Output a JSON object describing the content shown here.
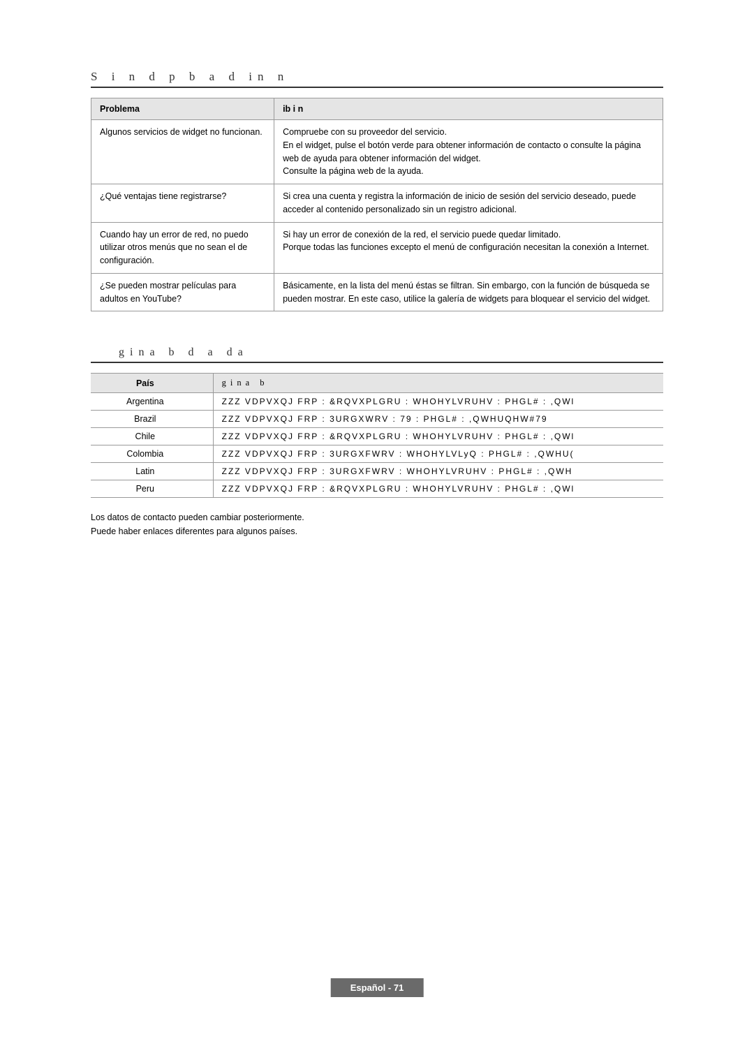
{
  "section1_title": "S     i  n d   p      b       a   d  in       n",
  "problem_table": {
    "header_problem": "Problema",
    "header_solution": "     ib               i   n",
    "rows": [
      {
        "problem": "Algunos servicios de widget no funcionan.",
        "solution": "Compruebe con su proveedor del servicio.\nEn el widget, pulse el botón verde para obtener información de contacto o consulte la página web de ayuda para obtener información del widget.\nConsulte la página web de la ayuda."
      },
      {
        "problem": "¿Qué ventajas tiene registrarse?",
        "solution": "Si crea una cuenta y registra la información de inicio de sesión del servicio deseado, puede acceder al contenido personalizado sin un registro adicional."
      },
      {
        "problem": "Cuando hay un error de red, no puedo utilizar otros menús que no sean el de configuración.",
        "solution": "Si hay un error de conexión de la red, el servicio puede quedar limitado.\nPorque todas las funciones excepto el menú de configuración necesitan la conexión a Internet."
      },
      {
        "problem": "¿Se pueden mostrar películas para adultos en YouTube?",
        "solution": "Básicamente, en la lista del menú éstas se filtran. Sin embargo, con la función de búsqueda se pueden mostrar. En este caso, utilice la galería de widgets para bloquear el servicio del widget."
      }
    ]
  },
  "section2_title": "gina     b d   a     da",
  "country_table": {
    "header_country": "País",
    "header_url": "gina     b",
    "rows": [
      {
        "country": "Argentina",
        "url": "ZZZ VDPVXQJ FRP : &RQVXPLGRU : WHOHYLVRUHV : PHGL#    : ,QWl"
      },
      {
        "country": "Brazil",
        "url": "ZZZ VDPVXQJ FRP : 3URGXWRV : 79 : PHGL#   : ,QWHUQHW#79"
      },
      {
        "country": "Chile",
        "url": "ZZZ VDPVXQJ FRP : &RQVXPLGRU : WHOHYLVRUHV : PHGL#    : ,QWl"
      },
      {
        "country": "Colombia",
        "url": "ZZZ VDPVXQJ FRP : 3URGXFWRV : WHOHYLVLyQ : PHGL#    : ,QWHU("
      },
      {
        "country": "Latin",
        "url": "ZZZ VDPVXQJ FRP : 3URGXFWRV : WHOHYLVRUHV : PHGL#    : ,QWH"
      },
      {
        "country": "Peru",
        "url": "ZZZ VDPVXQJ FRP : &RQVXPLGRU : WHOHYLVRUHV : PHGL#    : ,QWl"
      }
    ]
  },
  "notes": {
    "line1": "Los datos de contacto pueden cambiar posteriormente.",
    "line2": "Puede haber enlaces diferentes para algunos países."
  },
  "footer": "Español - 71"
}
